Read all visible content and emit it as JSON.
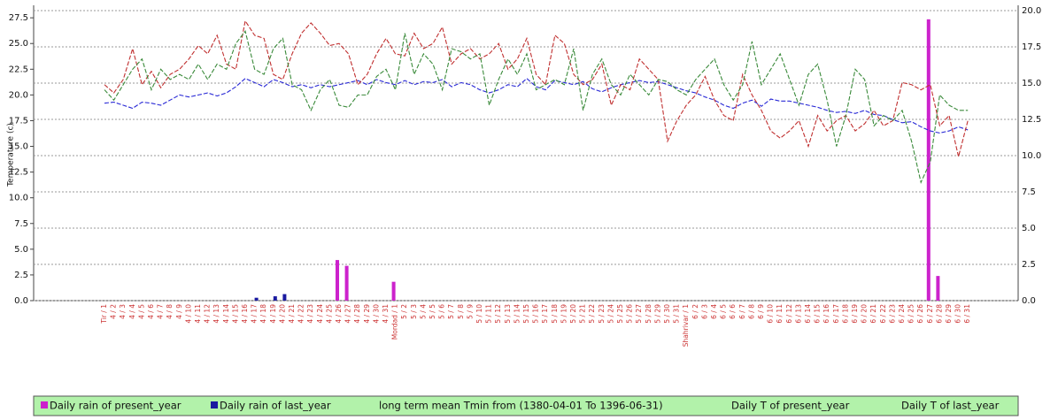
{
  "chart_data": {
    "type": "combo",
    "y_label": "Temperature (c)",
    "categories": [
      "Tir / 1",
      "4 / 2",
      "4 / 3",
      "4 / 4",
      "4 / 5",
      "4 / 6",
      "4 / 7",
      "4 / 8",
      "4 / 9",
      "4 / 10",
      "4 / 11",
      "4 / 12",
      "4 / 13",
      "4 / 14",
      "4 / 15",
      "4 / 16",
      "4 / 17",
      "4 / 18",
      "4 / 19",
      "4 / 20",
      "4 / 21",
      "4 / 22",
      "4 / 23",
      "4 / 24",
      "4 / 25",
      "4 / 26",
      "4 / 27",
      "4 / 28",
      "4 / 29",
      "4 / 30",
      "4 / 31",
      "Mordad / 1",
      "5 / 2",
      "5 / 3",
      "5 / 4",
      "5 / 5",
      "5 / 6",
      "5 / 7",
      "5 / 8",
      "5 / 9",
      "5 / 10",
      "5 / 11",
      "5 / 12",
      "5 / 13",
      "5 / 14",
      "5 / 15",
      "5 / 16",
      "5 / 17",
      "5 / 18",
      "5 / 19",
      "5 / 20",
      "5 / 21",
      "5 / 22",
      "5 / 23",
      "5 / 24",
      "5 / 25",
      "5 / 26",
      "5 / 27",
      "5 / 28",
      "5 / 29",
      "5 / 30",
      "5 / 31",
      "Shahrivar / 1",
      "6 / 2",
      "6 / 3",
      "6 / 4",
      "6 / 5",
      "6 / 6",
      "6 / 7",
      "6 / 8",
      "6 / 9",
      "6 / 10",
      "6 / 11",
      "6 / 12",
      "6 / 13",
      "6 / 14",
      "6 / 15",
      "6 / 16",
      "6 / 17",
      "6 / 18",
      "6 / 19",
      "6 / 20",
      "6 / 21",
      "6 / 22",
      "6 / 23",
      "6 / 24",
      "6 / 25",
      "6 / 26",
      "6 / 27",
      "6 / 28",
      "6 / 29",
      "6 / 30",
      "6 / 31"
    ],
    "series": [
      {
        "name": "Daily rain of present_year",
        "type": "bar",
        "axis": "y2",
        "color": "#cc22cc",
        "values": [
          0,
          0,
          0,
          0,
          0,
          0,
          0,
          0,
          0,
          0,
          0,
          0,
          0,
          0,
          0,
          0,
          0,
          0,
          0,
          0,
          0,
          0,
          0,
          0,
          0,
          2.8,
          2.4,
          0,
          0,
          0,
          0,
          1.3,
          0,
          0,
          0,
          0,
          0,
          0,
          0,
          0,
          0,
          0,
          0,
          0,
          0,
          0,
          0,
          0,
          0,
          0,
          0,
          0,
          0,
          0,
          0,
          0,
          0,
          0,
          0,
          0,
          0,
          0,
          0,
          0,
          0,
          0,
          0,
          0,
          0,
          0,
          0,
          0,
          0,
          0,
          0,
          0,
          0,
          0,
          0,
          0,
          0,
          0,
          0,
          0,
          0,
          0,
          0,
          0,
          19.4,
          1.7,
          0,
          0,
          0
        ]
      },
      {
        "name": "Daily rain of last_year",
        "type": "bar",
        "axis": "y2",
        "color": "#1a1aa0",
        "values": [
          0,
          0,
          0,
          0,
          0,
          0,
          0,
          0,
          0,
          0,
          0,
          0,
          0,
          0,
          0,
          0,
          0.2,
          0,
          0.3,
          0.45,
          0,
          0,
          0,
          0,
          0,
          0,
          0,
          0,
          0,
          0,
          0,
          0,
          0,
          0,
          0,
          0,
          0,
          0,
          0,
          0,
          0,
          0,
          0,
          0,
          0,
          0,
          0,
          0,
          0,
          0,
          0,
          0,
          0,
          0,
          0,
          0,
          0,
          0,
          0,
          0,
          0,
          0,
          0,
          0,
          0,
          0,
          0,
          0,
          0,
          0,
          0,
          0,
          0,
          0,
          0,
          0,
          0,
          0,
          0,
          0,
          0,
          0,
          0,
          0,
          0,
          0,
          0,
          0,
          0,
          0,
          0,
          0,
          0
        ]
      },
      {
        "name": "long term mean Tmin from (1380-04-01 To 1396-06-31)",
        "type": "line",
        "color": "#2a2ad6",
        "values": [
          19.2,
          19.3,
          19,
          18.7,
          19.3,
          19.2,
          19,
          19.5,
          20,
          19.8,
          20,
          20.2,
          19.9,
          20.2,
          20.8,
          21.6,
          21.2,
          20.8,
          21.5,
          21.2,
          20.8,
          21,
          20.7,
          21,
          20.8,
          21,
          21.2,
          21.4,
          21,
          21.5,
          21.2,
          21,
          21.4,
          21,
          21.3,
          21.2,
          21.5,
          20.8,
          21.2,
          21,
          20.5,
          20.2,
          20.5,
          21,
          20.8,
          21.6,
          20.8,
          20.5,
          21.4,
          21.2,
          21,
          21.3,
          20.6,
          20.3,
          20.7,
          21,
          21.2,
          21.4,
          21.2,
          21.3,
          21,
          20.7,
          20.4,
          20.2,
          19.8,
          19.5,
          19,
          18.7,
          19.2,
          19.5,
          18.9,
          19.6,
          19.4,
          19.4,
          19.2,
          19,
          18.8,
          18.5,
          18.3,
          18.4,
          18.2,
          18.5,
          18.1,
          18,
          17.6,
          17.3,
          17.4,
          16.9,
          16.5,
          16.3,
          16.5,
          16.9,
          16.6
        ]
      },
      {
        "name": "Daily T of present_year",
        "type": "line",
        "color": "#c03030",
        "values": [
          21,
          20.2,
          21.5,
          24.5,
          21,
          22.3,
          20.7,
          22,
          22.5,
          23.5,
          24.8,
          24,
          25.8,
          23,
          22.5,
          27.2,
          25.8,
          25.5,
          22,
          21.5,
          24,
          26,
          27,
          26,
          24.8,
          25,
          24,
          21,
          22,
          24,
          25.5,
          24,
          23.8,
          26,
          24.5,
          25,
          26.6,
          23,
          24,
          24.5,
          23.5,
          24,
          25,
          22.5,
          23.5,
          25.5,
          22,
          21,
          25.8,
          25,
          22,
          21,
          21.5,
          23,
          19,
          21,
          20.5,
          23.5,
          22.5,
          21.5,
          15.5,
          17.5,
          19,
          20,
          21.8,
          19.5,
          18,
          17.5,
          22,
          20,
          18.5,
          16.5,
          15.8,
          16.5,
          17.5,
          15,
          18,
          16.5,
          17.5,
          18,
          16.5,
          17.2,
          18.5,
          17,
          17.5,
          21.2,
          21,
          20.5,
          21,
          17,
          18,
          14,
          17.5
        ]
      },
      {
        "name": "Daily T of last_year",
        "type": "line",
        "color": "#3a8a3a",
        "values": [
          20.5,
          19.5,
          21,
          22.5,
          23.5,
          20.5,
          22.5,
          21.5,
          22,
          21.5,
          23,
          21.5,
          23,
          22.5,
          25,
          26.2,
          22.5,
          22,
          24.5,
          25.5,
          21,
          20.5,
          18.5,
          20.5,
          21.5,
          19,
          18.8,
          20,
          20,
          21.8,
          22.5,
          20.5,
          26,
          22,
          24,
          23,
          20.5,
          24.5,
          24.2,
          23.5,
          24,
          19,
          21.5,
          23.5,
          22,
          24,
          20.5,
          21,
          21.5,
          21,
          24.5,
          18.5,
          22,
          23.5,
          21,
          20,
          22,
          21,
          20,
          21.5,
          21.3,
          20.5,
          20,
          21.5,
          22.5,
          23.5,
          21,
          19.5,
          21,
          25.2,
          21,
          22.5,
          24,
          21.5,
          19,
          22,
          23,
          19.5,
          15,
          18,
          22.5,
          21.5,
          17,
          18,
          17.5,
          18.5,
          15.5,
          11.5,
          13.5,
          20,
          19,
          18.5,
          18.5
        ]
      }
    ],
    "ylim": [
      0,
      28.2
    ],
    "yticks": [
      {
        "value": 0,
        "label": "0.0"
      },
      2.5,
      {
        "value": 5,
        "label": "5.0"
      },
      7.5,
      {
        "value": 10,
        "label": "10.0"
      },
      12.5,
      {
        "value": 15,
        "label": "15.0"
      },
      17.5,
      {
        "value": 20,
        "label": "20.0"
      },
      22.5,
      {
        "value": 25,
        "label": "25.0"
      },
      27.5
    ],
    "y2lim": [
      0,
      20
    ],
    "y2ticks": [
      {
        "value": 0,
        "label": "0.0"
      },
      2.5,
      {
        "value": 5,
        "label": "5.0"
      },
      7.5,
      {
        "value": 10,
        "label": "10.0"
      },
      12.5,
      {
        "value": 15,
        "label": "15.0"
      },
      17.5,
      {
        "value": 20,
        "label": "20.0"
      }
    ],
    "grid": "y2"
  }
}
